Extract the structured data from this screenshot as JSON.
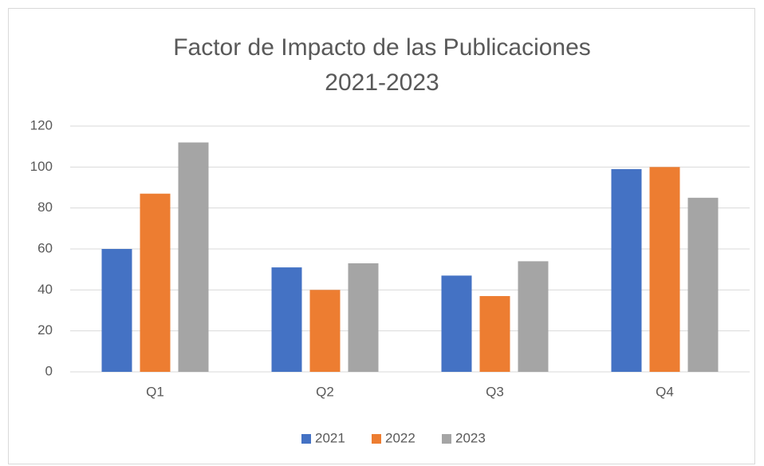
{
  "chart_data": {
    "type": "bar",
    "title": "Factor de Impacto de las Publicaciones 2021-2023",
    "categories": [
      "Q1",
      "Q2",
      "Q3",
      "Q4"
    ],
    "series": [
      {
        "name": "2021",
        "color": "#4472c4",
        "values": [
          60,
          51,
          47,
          99
        ]
      },
      {
        "name": "2022",
        "color": "#ed7d31",
        "values": [
          87,
          40,
          37,
          100
        ]
      },
      {
        "name": "2023",
        "color": "#a5a5a5",
        "values": [
          112,
          53,
          54,
          85
        ]
      }
    ],
    "ylim": [
      0,
      120
    ],
    "yticks": [
      0,
      20,
      40,
      60,
      80,
      100,
      120
    ],
    "grid": true,
    "legend": "bottom"
  }
}
